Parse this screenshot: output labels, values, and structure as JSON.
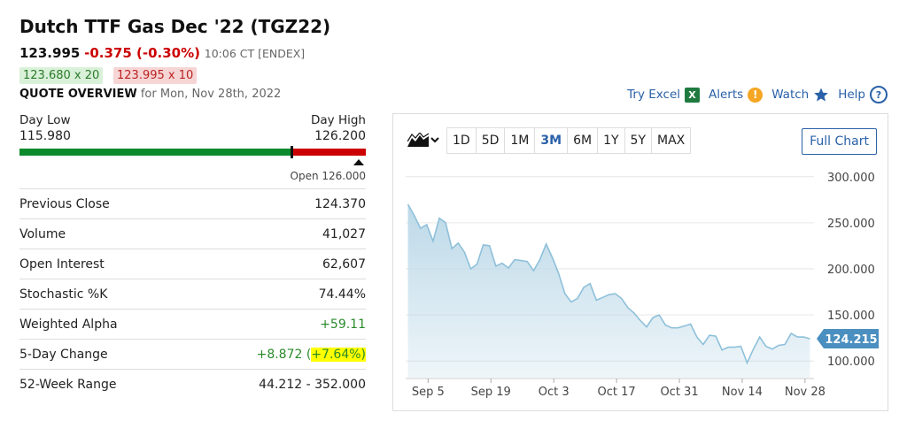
{
  "header": {
    "title": "Dutch TTF Gas Dec '22 (TGZ22)",
    "last": "123.995",
    "change": "-0.375 (-0.30%)",
    "time": "10:06 CT [ENDEX]",
    "bid": "123.680 x 20",
    "ask": "123.995 x 10",
    "quote_overview": "QUOTE OVERVIEW",
    "quote_date": "for Mon, Nov 28th, 2022"
  },
  "links": {
    "try_excel": "Try Excel",
    "excel_icon": "X",
    "alerts": "Alerts",
    "alert_icon": "!",
    "watch": "Watch",
    "help": "Help",
    "help_icon": "?"
  },
  "colors": {
    "down": "#cc0000",
    "up": "#0c8a2b",
    "link": "#2a61a8",
    "area_fill": "#bcd9e8",
    "area_line": "#8ec0da",
    "last_tag": "#4a8fc0"
  },
  "day_range": {
    "low_label": "Day Low",
    "low": "115.980",
    "high_label": "Day High",
    "high": "126.200",
    "open_label": "Open 126.000",
    "low_value": 115.98,
    "high_value": 126.2,
    "current_value": 123.995,
    "open_value": 126.0
  },
  "stats": [
    {
      "label": "Previous Close",
      "value": "124.370",
      "pos": false,
      "highlight": ""
    },
    {
      "label": "Volume",
      "value": "41,027",
      "pos": false,
      "highlight": ""
    },
    {
      "label": "Open Interest",
      "value": "62,607",
      "pos": false,
      "highlight": ""
    },
    {
      "label": "Stochastic %K",
      "value": "74.44%",
      "pos": false,
      "highlight": ""
    },
    {
      "label": "Weighted Alpha",
      "value": "+59.11",
      "pos": true,
      "highlight": ""
    },
    {
      "label": "5-Day Change",
      "value": "+8.872 (",
      "pos": true,
      "highlight": "+7.64%)"
    },
    {
      "label": "52-Week Range",
      "value": "44.212 - 352.000",
      "pos": false,
      "highlight": ""
    }
  ],
  "chart_controls": {
    "periods": [
      "1D",
      "5D",
      "1M",
      "3M",
      "6M",
      "1Y",
      "5Y",
      "MAX"
    ],
    "active_period": "3M",
    "full_chart": "Full Chart",
    "chart_type_icon": "mountain-chart-icon"
  },
  "chart_data": {
    "type": "area",
    "y_ticks": [
      "300.000",
      "250.000",
      "200.000",
      "150.000",
      "100.000"
    ],
    "y_tick_values": [
      300,
      250,
      200,
      150,
      100
    ],
    "ylim": [
      82,
      318
    ],
    "x_ticks": [
      "Sep 5",
      "Sep 19",
      "Oct 3",
      "Oct 17",
      "Oct 31",
      "Nov 14",
      "Nov 28"
    ],
    "x_tick_days": [
      5,
      19,
      33,
      47,
      61,
      75,
      89
    ],
    "x_range_days": [
      0,
      91
    ],
    "last_value_label": "124.215",
    "last_value": 124.215,
    "points": [
      [
        0,
        270
      ],
      [
        1,
        258
      ],
      [
        2,
        244
      ],
      [
        3,
        248
      ],
      [
        4,
        230
      ],
      [
        5,
        255
      ],
      [
        6,
        250
      ],
      [
        7,
        222
      ],
      [
        8,
        228
      ],
      [
        9,
        218
      ],
      [
        10,
        200
      ],
      [
        11,
        205
      ],
      [
        12,
        226
      ],
      [
        13,
        225
      ],
      [
        14,
        203
      ],
      [
        15,
        206
      ],
      [
        16,
        201
      ],
      [
        17,
        210
      ],
      [
        18,
        209
      ],
      [
        19,
        208
      ],
      [
        20,
        198
      ],
      [
        21,
        210
      ],
      [
        22,
        227
      ],
      [
        23,
        212
      ],
      [
        24,
        195
      ],
      [
        25,
        173
      ],
      [
        26,
        164
      ],
      [
        27,
        168
      ],
      [
        28,
        180
      ],
      [
        29,
        184
      ],
      [
        30,
        166
      ],
      [
        31,
        169
      ],
      [
        32,
        172
      ],
      [
        33,
        173
      ],
      [
        34,
        168
      ],
      [
        35,
        158
      ],
      [
        36,
        152
      ],
      [
        37,
        144
      ],
      [
        38,
        137
      ],
      [
        39,
        147
      ],
      [
        40,
        150
      ],
      [
        41,
        139
      ],
      [
        42,
        136
      ],
      [
        43,
        136
      ],
      [
        44,
        138
      ],
      [
        45,
        140
      ],
      [
        46,
        126
      ],
      [
        47,
        118
      ],
      [
        48,
        128
      ],
      [
        49,
        127
      ],
      [
        50,
        112
      ],
      [
        51,
        115
      ],
      [
        52,
        115
      ],
      [
        53,
        116
      ],
      [
        54,
        98
      ],
      [
        55,
        113
      ],
      [
        56,
        126
      ],
      [
        57,
        116
      ],
      [
        58,
        113
      ],
      [
        59,
        117
      ],
      [
        60,
        118
      ],
      [
        61,
        130
      ],
      [
        62,
        126
      ],
      [
        63,
        126
      ],
      [
        64,
        124.215
      ]
    ],
    "day_offset_of_first_point": 0.5,
    "days_per_point": 1.4
  }
}
